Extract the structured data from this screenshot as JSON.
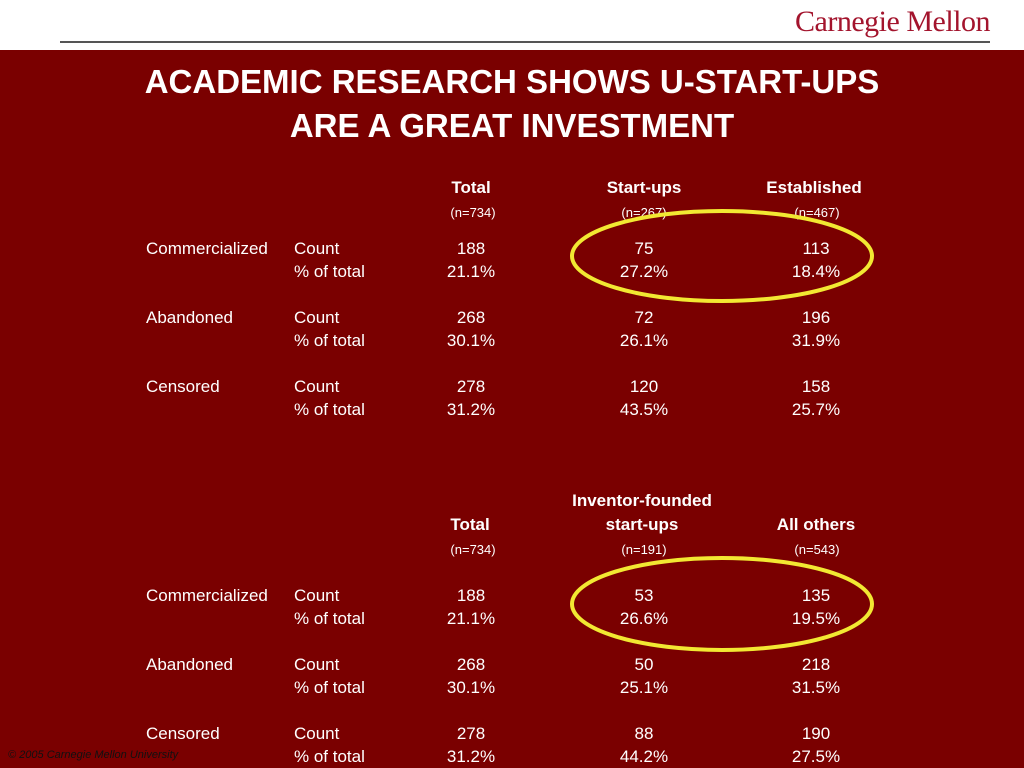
{
  "header": {
    "logo": "Carnegie Mellon"
  },
  "title": {
    "line1": "ACADEMIC RESEARCH SHOWS U-START-UPS",
    "line2": "ARE A GREAT INVESTMENT"
  },
  "tables": [
    {
      "headers": [
        {
          "text": "Total",
          "n": "(n=734)"
        },
        {
          "text": "Start-ups",
          "n": "(n=267)"
        },
        {
          "text": "Established",
          "n": "(n=467)"
        }
      ],
      "rows": [
        {
          "label": "Commercialized",
          "count_label": "Count",
          "pct_label": "% of total",
          "counts": [
            "188",
            "75",
            "113"
          ],
          "pcts": [
            "21.1%",
            "27.2%",
            "18.4%"
          ]
        },
        {
          "label": "Abandoned",
          "count_label": "Count",
          "pct_label": "% of total",
          "counts": [
            "268",
            "72",
            "196"
          ],
          "pcts": [
            "30.1%",
            "26.1%",
            "31.9%"
          ]
        },
        {
          "label": "Censored",
          "count_label": "Count",
          "pct_label": "% of total",
          "counts": [
            "278",
            "120",
            "158"
          ],
          "pcts": [
            "31.2%",
            "43.5%",
            "25.7%"
          ]
        }
      ]
    },
    {
      "headers": [
        {
          "text": "Total",
          "n": "(n=734)"
        },
        {
          "text_line1": "Inventor-founded",
          "text": "start-ups",
          "n": "(n=191)"
        },
        {
          "text": "All others",
          "n": "(n=543)"
        }
      ],
      "rows": [
        {
          "label": "Commercialized",
          "count_label": "Count",
          "pct_label": "% of total",
          "counts": [
            "188",
            "53",
            "135"
          ],
          "pcts": [
            "21.1%",
            "26.6%",
            "19.5%"
          ]
        },
        {
          "label": "Abandoned",
          "count_label": "Count",
          "pct_label": "% of total",
          "counts": [
            "268",
            "50",
            "218"
          ],
          "pcts": [
            "30.1%",
            "25.1%",
            "31.5%"
          ]
        },
        {
          "label": "Censored",
          "count_label": "Count",
          "pct_label": "% of total",
          "counts": [
            "278",
            "88",
            "190"
          ],
          "pcts": [
            "31.2%",
            "44.2%",
            "27.5%"
          ]
        }
      ]
    }
  ],
  "highlight_color": "#f2e832",
  "footer": {
    "copyright": "© 2005 Carnegie Mellon University"
  }
}
